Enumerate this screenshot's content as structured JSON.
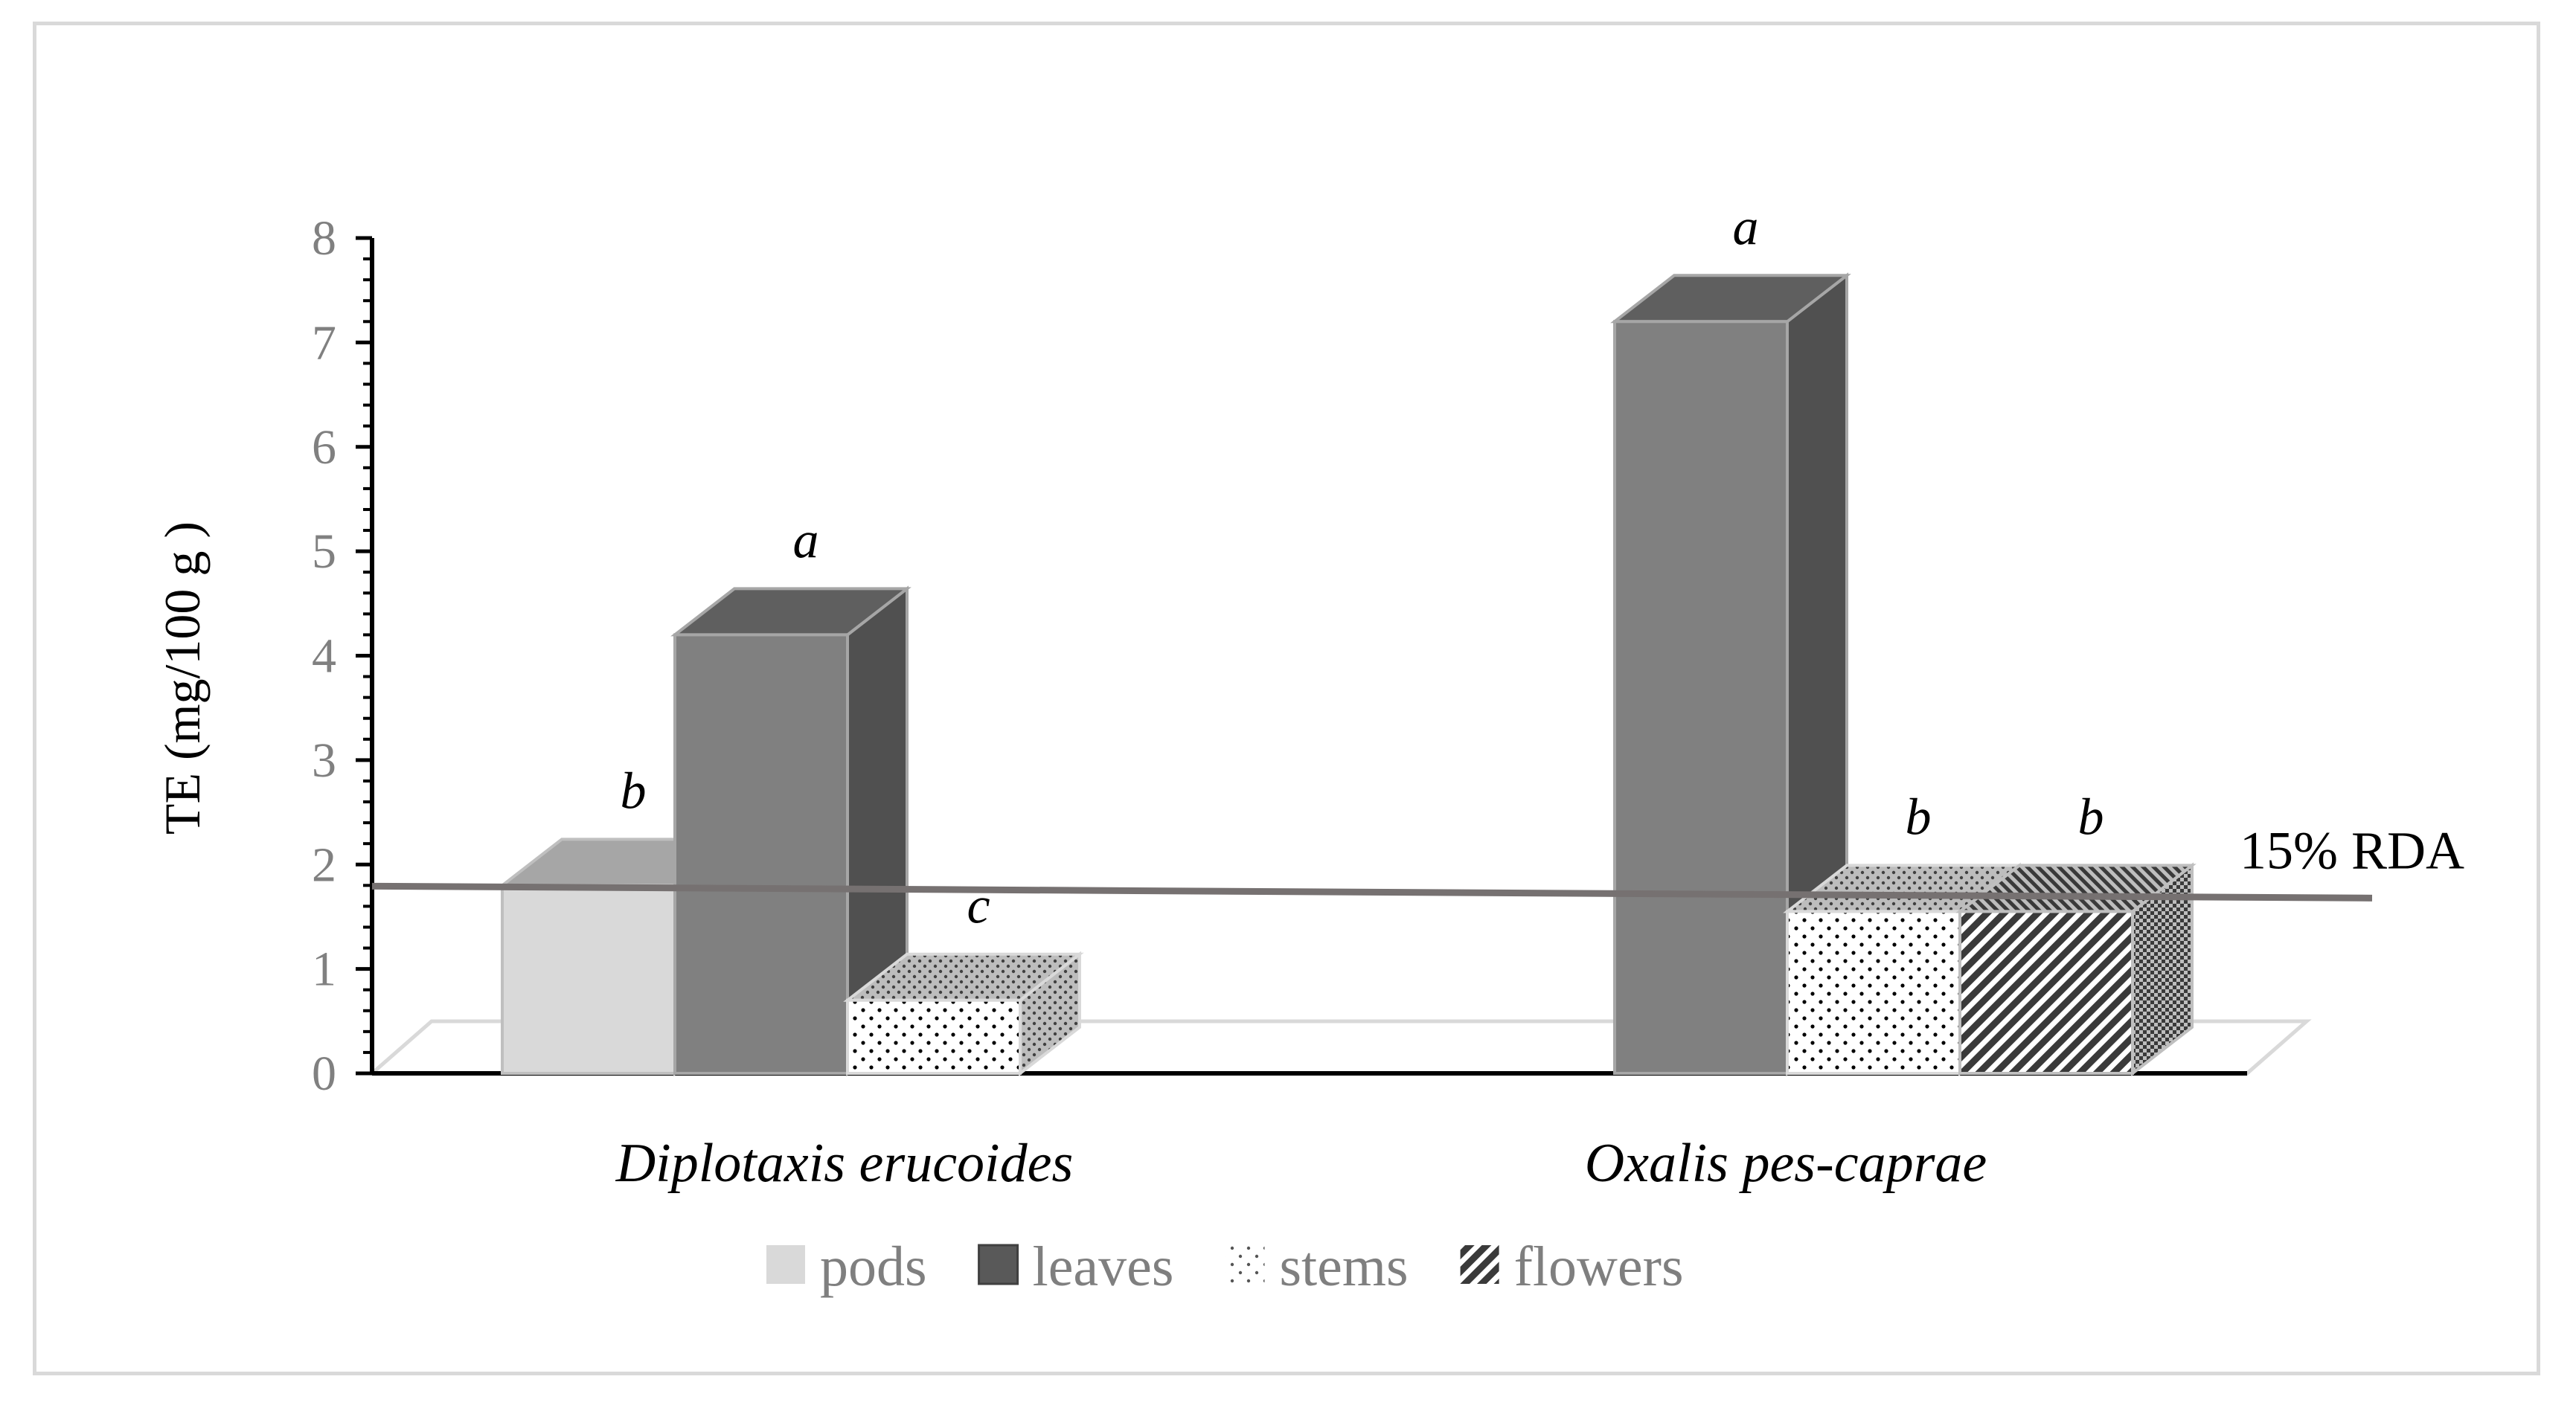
{
  "chart_data": {
    "type": "bar",
    "categories": [
      "Diplotaxis erucoides",
      "Oxalis pes-caprae"
    ],
    "series": [
      {
        "name": "pods",
        "values": [
          1.8,
          null
        ],
        "significance": [
          "b",
          null
        ],
        "pattern": "solid-light",
        "color": "#d9d9d9"
      },
      {
        "name": "leaves",
        "values": [
          4.2,
          7.2
        ],
        "significance": [
          "a",
          "a"
        ],
        "pattern": "solid-dark",
        "color": "#808080"
      },
      {
        "name": "stems",
        "values": [
          0.7,
          1.55
        ],
        "significance": [
          "c",
          "b"
        ],
        "pattern": "dots",
        "color": "#ffffff"
      },
      {
        "name": "flowers",
        "values": [
          null,
          1.55
        ],
        "significance": [
          null,
          "b"
        ],
        "pattern": "diagonal-stripes",
        "color": "#404040"
      }
    ],
    "ylabel": "TE (mg/100 g )",
    "ylim": [
      0,
      8
    ],
    "yticks": [
      "0",
      "1",
      "2",
      "3",
      "4",
      "5",
      "6",
      "7",
      "8"
    ],
    "reference_line": {
      "label": "15% RDA",
      "value": 1.75,
      "color": "#767171"
    },
    "legend_position": "bottom",
    "grid": false,
    "style": "3d"
  }
}
